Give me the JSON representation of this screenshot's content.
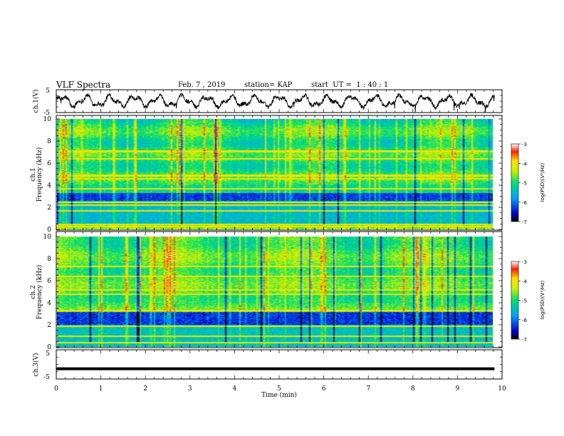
{
  "header": {
    "title": "VLF Spectra",
    "date": "Feb. 7 , 2019",
    "station": "station= KAP",
    "start": "start  UT =  1 : 40 : 1"
  },
  "chart_data": [
    {
      "type": "line",
      "name": "ch1-waveform",
      "ylabel": "ch.1(V)",
      "ylim": [
        -5,
        5
      ],
      "yticks": [
        "5",
        "-5"
      ],
      "xlim": [
        0,
        10
      ],
      "description_series": "oscillating waveform approx ±3 V with ~18 cycles over 9.8 min"
    },
    {
      "type": "heatmap",
      "name": "ch1-spectrogram",
      "ylabel": "ch.1\nFrequency (kHz)",
      "ylim": [
        0,
        10
      ],
      "yticks": [
        "0",
        "2",
        "4",
        "6",
        "8",
        "10"
      ],
      "xlim": [
        0,
        9.83
      ],
      "colorbar": {
        "label": "log(PSD)(V²/Hz)",
        "range": [
          -7,
          -3
        ],
        "ticks": [
          "-3",
          "-4",
          "-5",
          "-6",
          "-7"
        ]
      }
    },
    {
      "type": "heatmap",
      "name": "ch2-spectrogram",
      "ylabel": "ch.2\nFrequency (kHz)",
      "ylim": [
        0,
        10
      ],
      "yticks": [
        "0",
        "2",
        "4",
        "6",
        "8",
        "10"
      ],
      "xlim": [
        0,
        9.83
      ],
      "colorbar": {
        "label": "log(PSD)(V²/Hz)",
        "range": [
          -7,
          -3
        ],
        "ticks": [
          "-3",
          "-4",
          "-5",
          "-6",
          "-7"
        ]
      }
    },
    {
      "type": "line",
      "name": "ch3-waveform",
      "ylabel": "ch.3(V)",
      "ylim": [
        -5,
        5
      ],
      "yticks": [
        "5",
        "-5"
      ],
      "xlim": [
        0,
        10
      ],
      "constant_value": -1.5
    }
  ],
  "xaxis": {
    "label": "Time  (min)",
    "ticks": [
      "0",
      "1",
      "2",
      "3",
      "4",
      "5",
      "6",
      "7",
      "8",
      "9",
      "10"
    ]
  }
}
